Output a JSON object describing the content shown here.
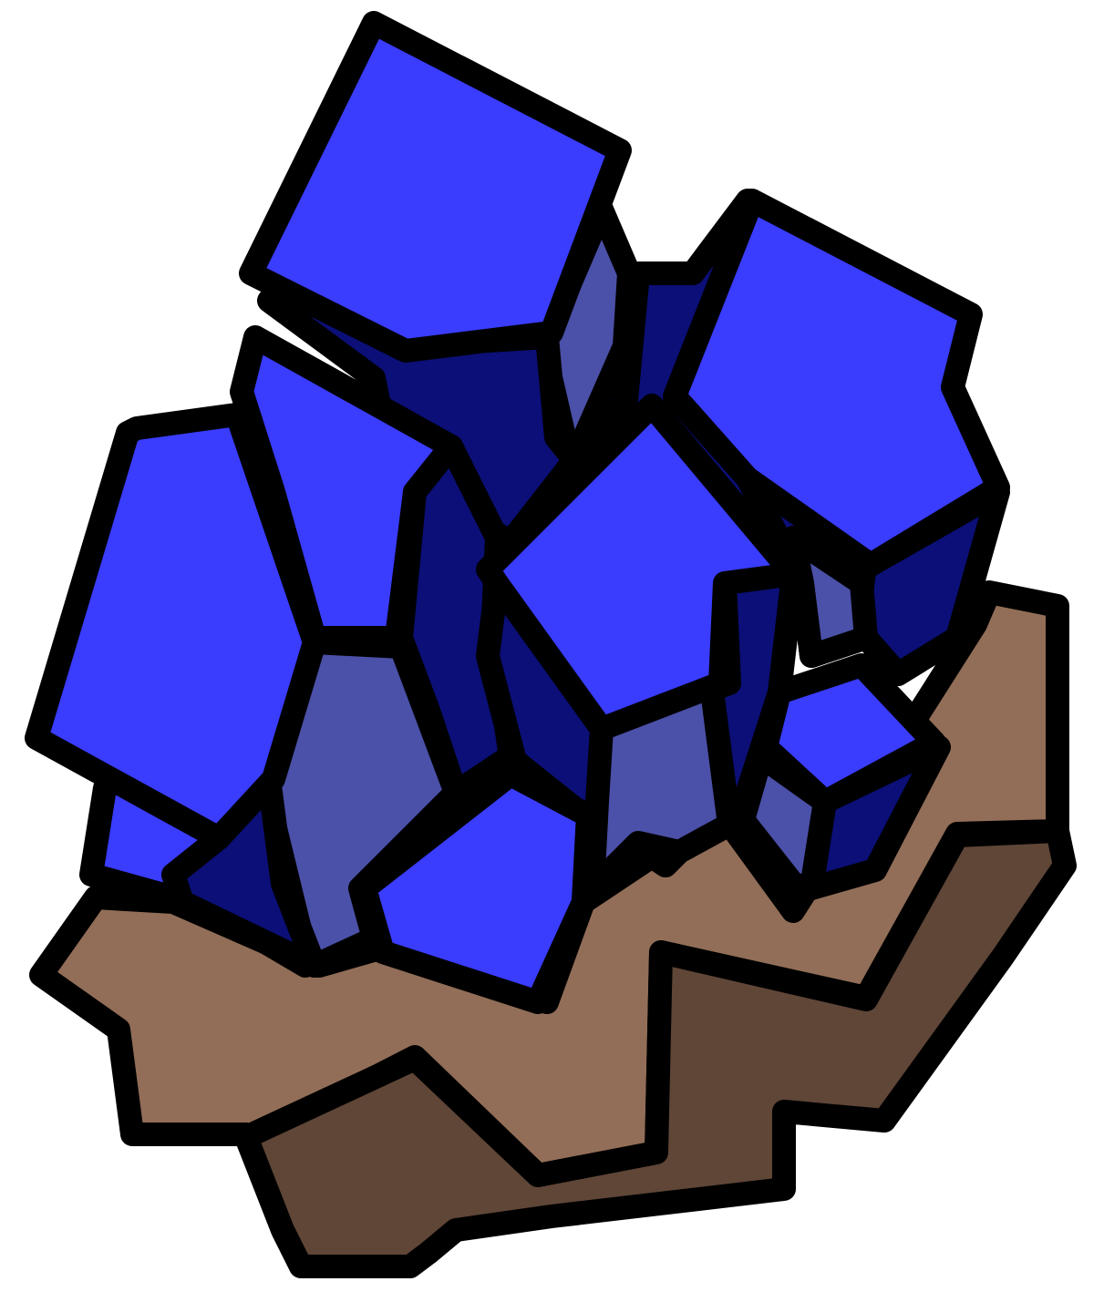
{
  "illustration": {
    "subject": "blue-crystal-cluster-icon",
    "colors": {
      "outline": "#000000",
      "crystal_face": "#3a3cfe",
      "crystal_side_dark": "#0b0f77",
      "crystal_side_mid": "#4b50a8",
      "rock_top": "#926e58",
      "rock_side": "#5f4637"
    }
  }
}
